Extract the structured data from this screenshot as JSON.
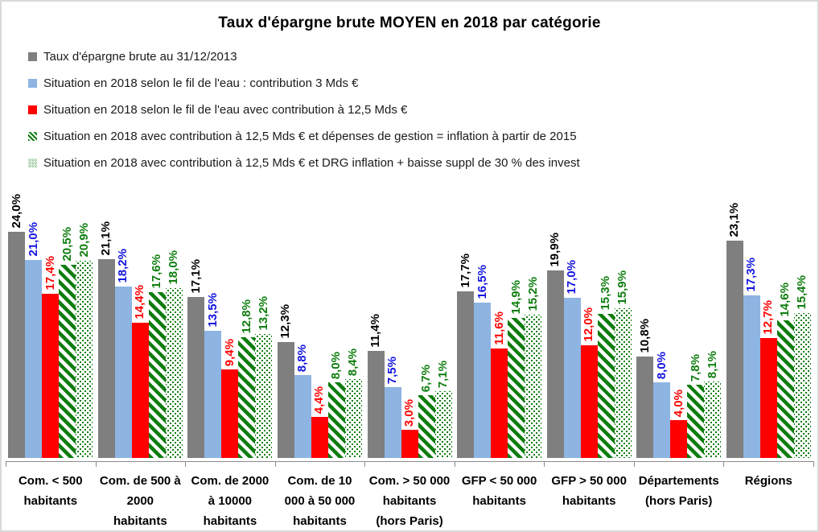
{
  "title": "Taux d'épargne brute MOYEN en 2018 par catégorie",
  "colors": {
    "gray_series": "#7F7F7F",
    "blue_series": "#8EB4E2",
    "red_series": "#FF0000",
    "green_series": "#0E7D0E",
    "gray_label": "#000000",
    "blue_label": "#1414E0",
    "red_label": "#FF0000",
    "green_label": "#0E7D0E",
    "axis": "#8C8C8C",
    "border": "#D9D9D9"
  },
  "chart_data": {
    "type": "bar",
    "title": "Taux d'épargne brute MOYEN en 2018 par catégorie",
    "xlabel": "",
    "ylabel": "",
    "ylim": [
      0,
      24
    ],
    "grid": false,
    "legend_position": "top-left",
    "value_label_format": "percent, 1 decimal, comma separator, rotated 90°",
    "categories": [
      "Com. < 500\nhabitants",
      "Com. de 500 à\n2000\nhabitants",
      "Com. de 2000\nà 10000\nhabitants",
      "Com. de 10\n000 à 50 000\nhabitants",
      "Com.  > 50 000\nhabitants\n(hors Paris)",
      "GFP < 50 000\nhabitants",
      "GFP > 50 000\nhabitants",
      "Départements\n(hors Paris)",
      "Régions"
    ],
    "series": [
      {
        "name": "Taux d'épargne brute au 31/12/2013",
        "pattern": "solid",
        "color": "#7F7F7F",
        "label_color": "#000000",
        "values": [
          24.0,
          21.1,
          17.1,
          12.3,
          11.4,
          17.7,
          19.9,
          10.8,
          23.1
        ]
      },
      {
        "name": "Situation en 2018 selon le fil de l'eau : contribution 3 Mds €",
        "pattern": "solid",
        "color": "#8EB4E2",
        "label_color": "#1414E0",
        "values": [
          21.0,
          18.2,
          13.5,
          8.8,
          7.5,
          16.5,
          17.0,
          8.0,
          17.3
        ]
      },
      {
        "name": "Situation en 2018 selon le fil de l'eau avec contribution à 12,5 Mds €",
        "pattern": "solid",
        "color": "#FF0000",
        "label_color": "#FF0000",
        "values": [
          17.4,
          14.4,
          9.4,
          4.4,
          3.0,
          11.6,
          12.0,
          4.0,
          12.7
        ]
      },
      {
        "name": "Situation en 2018 avec contribution à 12,5 Mds € et dépenses de gestion = inflation à partir de 2015",
        "pattern": "diagonal-hatch",
        "color": "#0E7D0E",
        "label_color": "#0E7D0E",
        "values": [
          20.5,
          17.6,
          12.8,
          8.0,
          6.7,
          14.9,
          15.3,
          7.8,
          14.6
        ]
      },
      {
        "name": "Situation en 2018 avec contribution à 12,5 Mds € et DRG inflation + baisse suppl de 30 % des invest",
        "pattern": "dot-lattice",
        "color": "#0E7D0E",
        "label_color": "#0E7D0E",
        "values": [
          20.9,
          18.0,
          13.2,
          8.4,
          7.1,
          15.2,
          15.9,
          8.1,
          15.4
        ]
      }
    ]
  }
}
